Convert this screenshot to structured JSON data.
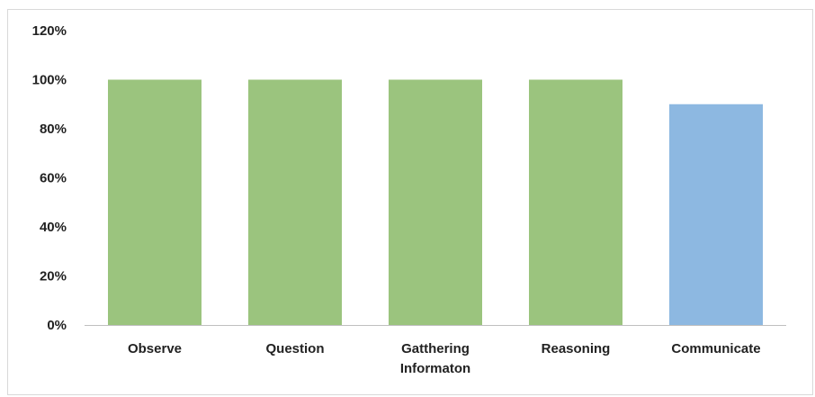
{
  "chart_data": {
    "type": "bar",
    "title": "",
    "xlabel": "",
    "ylabel": "",
    "ylim": [
      0,
      120
    ],
    "yticks": [
      "0%",
      "20%",
      "40%",
      "60%",
      "80%",
      "100%",
      "120%"
    ],
    "ytick_values": [
      0,
      20,
      40,
      60,
      80,
      100,
      120
    ],
    "grid": false,
    "legend": "none",
    "categories": [
      [
        "Observe"
      ],
      [
        "Question"
      ],
      [
        "Gatthering",
        "Informaton"
      ],
      [
        "Reasoning"
      ],
      [
        "Communicate"
      ]
    ],
    "values": [
      100,
      100,
      100,
      100,
      90
    ],
    "bar_colors": [
      "#9bc47e",
      "#9bc47e",
      "#9bc47e",
      "#9bc47e",
      "#8db8e1"
    ]
  }
}
